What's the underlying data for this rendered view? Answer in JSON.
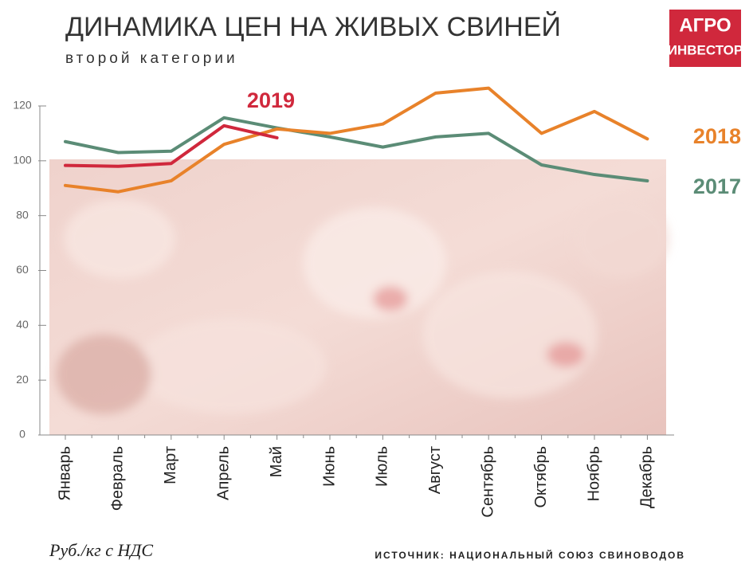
{
  "chart_data": {
    "type": "line",
    "title": "ДИНАМИКА ЦЕН НА ЖИВЫХ СВИНЕЙ",
    "subtitle": "второй категории",
    "logo": [
      "АГРО",
      "ИНВЕСТОР"
    ],
    "unit_label": "Руб./кг с НДС",
    "source": "ИСТОЧНИК: НАЦИОНАЛЬНЫЙ СОЮЗ СВИНОВОДОВ",
    "categories": [
      "Январь",
      "Февраль",
      "Март",
      "Апрель",
      "Май",
      "Июнь",
      "Июль",
      "Август",
      "Сентябрь",
      "Октябрь",
      "Ноябрь",
      "Декабрь"
    ],
    "series": [
      {
        "name": "2017",
        "color": "#5b8c76",
        "values": [
          107,
          103,
          103.5,
          115.7,
          112,
          108.7,
          105,
          108.7,
          110,
          98.5,
          95,
          92.7
        ]
      },
      {
        "name": "2018",
        "color": "#e8822a",
        "values": [
          91,
          88.7,
          92.7,
          106,
          111.6,
          110,
          113.4,
          124.7,
          126.5,
          110,
          118,
          108
        ]
      },
      {
        "name": "2019",
        "color": "#d0283c",
        "values": [
          98.3,
          98,
          99,
          112.8,
          108.4,
          null,
          null,
          null,
          null,
          null,
          null,
          null
        ]
      }
    ],
    "ylim": [
      0,
      120
    ],
    "yticks": [
      0,
      20,
      40,
      60,
      80,
      100,
      120
    ]
  }
}
